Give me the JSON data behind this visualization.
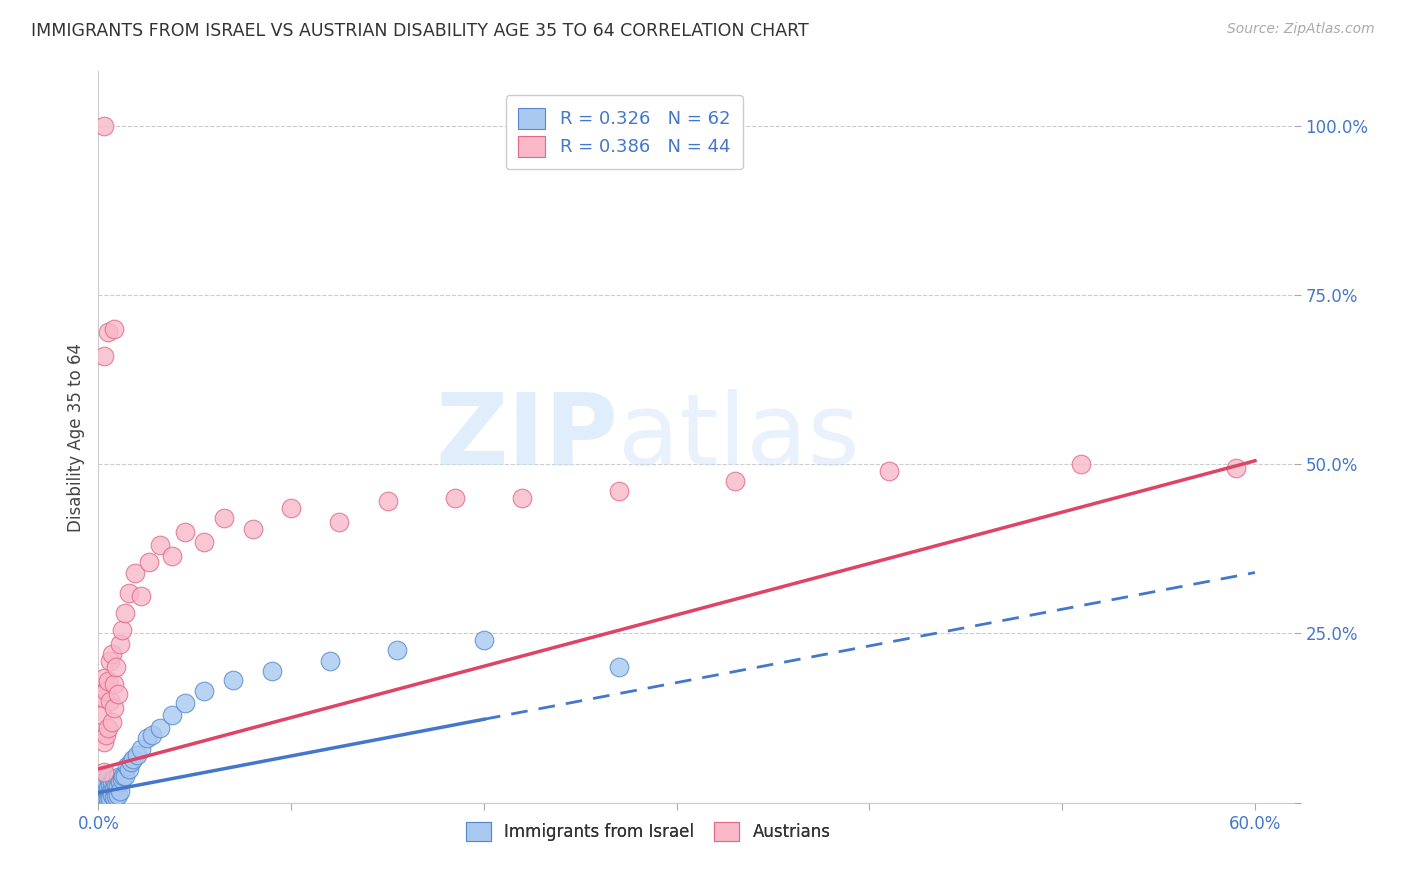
{
  "title": "IMMIGRANTS FROM ISRAEL VS AUSTRIAN DISABILITY AGE 35 TO 64 CORRELATION CHART",
  "source": "Source: ZipAtlas.com",
  "ylabel": "Disability Age 35 to 64",
  "xlim": [
    0.0,
    0.62
  ],
  "ylim": [
    0.0,
    1.08
  ],
  "xticks": [
    0.0,
    0.1,
    0.2,
    0.3,
    0.4,
    0.5,
    0.6
  ],
  "xticklabels": [
    "0.0%",
    "",
    "",
    "",
    "",
    "",
    "60.0%"
  ],
  "yticks": [
    0.0,
    0.25,
    0.5,
    0.75,
    1.0
  ],
  "yticklabels": [
    "",
    "25.0%",
    "50.0%",
    "75.0%",
    "100.0%"
  ],
  "legend_r_blue": "R = 0.326",
  "legend_n_blue": "N = 62",
  "legend_r_pink": "R = 0.386",
  "legend_n_pink": "N = 44",
  "blue_fill": "#a8c8f0",
  "blue_edge": "#5588cc",
  "pink_fill": "#f8b8c8",
  "pink_edge": "#e06888",
  "blue_line": "#4477cc",
  "pink_line": "#dd4466",
  "grid_color": "#cccccc",
  "blue_scatter_x": [
    0.001,
    0.001,
    0.001,
    0.002,
    0.002,
    0.002,
    0.002,
    0.003,
    0.003,
    0.003,
    0.003,
    0.003,
    0.003,
    0.004,
    0.004,
    0.004,
    0.004,
    0.004,
    0.005,
    0.005,
    0.005,
    0.005,
    0.005,
    0.006,
    0.006,
    0.006,
    0.006,
    0.007,
    0.007,
    0.007,
    0.008,
    0.008,
    0.008,
    0.009,
    0.009,
    0.009,
    0.01,
    0.01,
    0.01,
    0.011,
    0.011,
    0.012,
    0.013,
    0.014,
    0.015,
    0.016,
    0.017,
    0.018,
    0.02,
    0.022,
    0.025,
    0.028,
    0.032,
    0.038,
    0.045,
    0.055,
    0.07,
    0.09,
    0.12,
    0.155,
    0.2,
    0.27
  ],
  "blue_scatter_y": [
    0.02,
    0.01,
    0.005,
    0.015,
    0.025,
    0.01,
    0.005,
    0.015,
    0.025,
    0.035,
    0.008,
    0.018,
    0.005,
    0.02,
    0.012,
    0.03,
    0.008,
    0.005,
    0.015,
    0.022,
    0.038,
    0.01,
    0.005,
    0.018,
    0.028,
    0.01,
    0.005,
    0.02,
    0.03,
    0.012,
    0.022,
    0.035,
    0.008,
    0.025,
    0.015,
    0.01,
    0.025,
    0.038,
    0.012,
    0.03,
    0.018,
    0.035,
    0.04,
    0.04,
    0.055,
    0.05,
    0.06,
    0.065,
    0.07,
    0.08,
    0.095,
    0.1,
    0.11,
    0.13,
    0.148,
    0.165,
    0.182,
    0.195,
    0.21,
    0.225,
    0.24,
    0.2
  ],
  "pink_scatter_x": [
    0.002,
    0.003,
    0.003,
    0.003,
    0.003,
    0.004,
    0.004,
    0.005,
    0.005,
    0.006,
    0.006,
    0.007,
    0.007,
    0.008,
    0.008,
    0.009,
    0.01,
    0.011,
    0.012,
    0.014,
    0.016,
    0.019,
    0.022,
    0.026,
    0.032,
    0.038,
    0.045,
    0.055,
    0.065,
    0.08,
    0.1,
    0.125,
    0.15,
    0.185,
    0.22,
    0.27,
    0.33,
    0.41,
    0.51,
    0.59,
    0.003,
    0.005,
    0.008,
    0.003
  ],
  "pink_scatter_y": [
    0.13,
    0.09,
    0.155,
    0.185,
    0.045,
    0.1,
    0.165,
    0.11,
    0.18,
    0.15,
    0.21,
    0.12,
    0.22,
    0.14,
    0.175,
    0.2,
    0.16,
    0.235,
    0.255,
    0.28,
    0.31,
    0.34,
    0.305,
    0.355,
    0.38,
    0.365,
    0.4,
    0.385,
    0.42,
    0.405,
    0.435,
    0.415,
    0.445,
    0.45,
    0.45,
    0.46,
    0.475,
    0.49,
    0.5,
    0.495,
    0.66,
    0.695,
    0.7,
    1.0
  ],
  "blue_trend_x0": 0.0,
  "blue_trend_x1": 0.6,
  "blue_trend_y0": 0.015,
  "blue_trend_y1": 0.34,
  "blue_solid_xend": 0.2,
  "pink_trend_x0": 0.0,
  "pink_trend_x1": 0.6,
  "pink_trend_y0": 0.05,
  "pink_trend_y1": 0.505
}
